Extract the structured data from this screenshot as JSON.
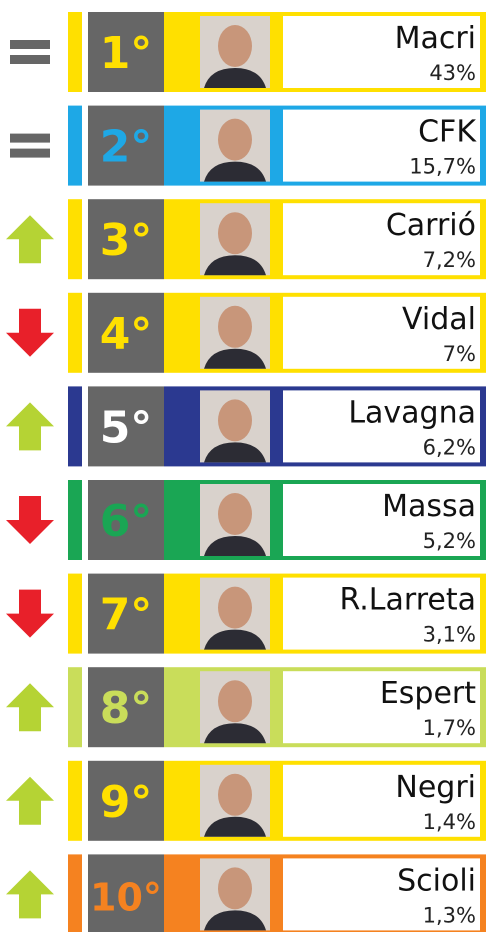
{
  "rows": [
    {
      "rank": "1°",
      "name": "Macri",
      "share": "43%",
      "trend": "same",
      "color": "#ffe000",
      "rank_color": "#ffe000"
    },
    {
      "rank": "2°",
      "name": "CFK",
      "share": "15,7%",
      "trend": "same",
      "color": "#1ea8e6",
      "rank_color": "#1ea8e6"
    },
    {
      "rank": "3°",
      "name": "Carrió",
      "share": "7,2%",
      "trend": "up",
      "color": "#ffe000",
      "rank_color": "#ffe000"
    },
    {
      "rank": "4°",
      "name": "Vidal",
      "share": "7%",
      "trend": "down",
      "color": "#ffe000",
      "rank_color": "#ffe000"
    },
    {
      "rank": "5°",
      "name": "Lavagna",
      "share": "6,2%",
      "trend": "up",
      "color": "#2b3990",
      "rank_color": "#ffffff"
    },
    {
      "rank": "6°",
      "name": "Massa",
      "share": "5,2%",
      "trend": "down",
      "color": "#1aa654",
      "rank_color": "#1aa654"
    },
    {
      "rank": "7°",
      "name": "R.Larreta",
      "share": "3,1%",
      "trend": "down",
      "color": "#ffe000",
      "rank_color": "#ffe000"
    },
    {
      "rank": "8°",
      "name": "Espert",
      "share": "1,7%",
      "trend": "up",
      "color": "#c9dd5a",
      "rank_color": "#c9dd5a"
    },
    {
      "rank": "9°",
      "name": "Negri",
      "share": "1,4%",
      "trend": "up",
      "color": "#ffe000",
      "rank_color": "#ffe000"
    },
    {
      "rank": "10°",
      "name": "Scioli",
      "share": "1,3%",
      "trend": "up",
      "color": "#f58220",
      "rank_color": "#f58220"
    }
  ]
}
